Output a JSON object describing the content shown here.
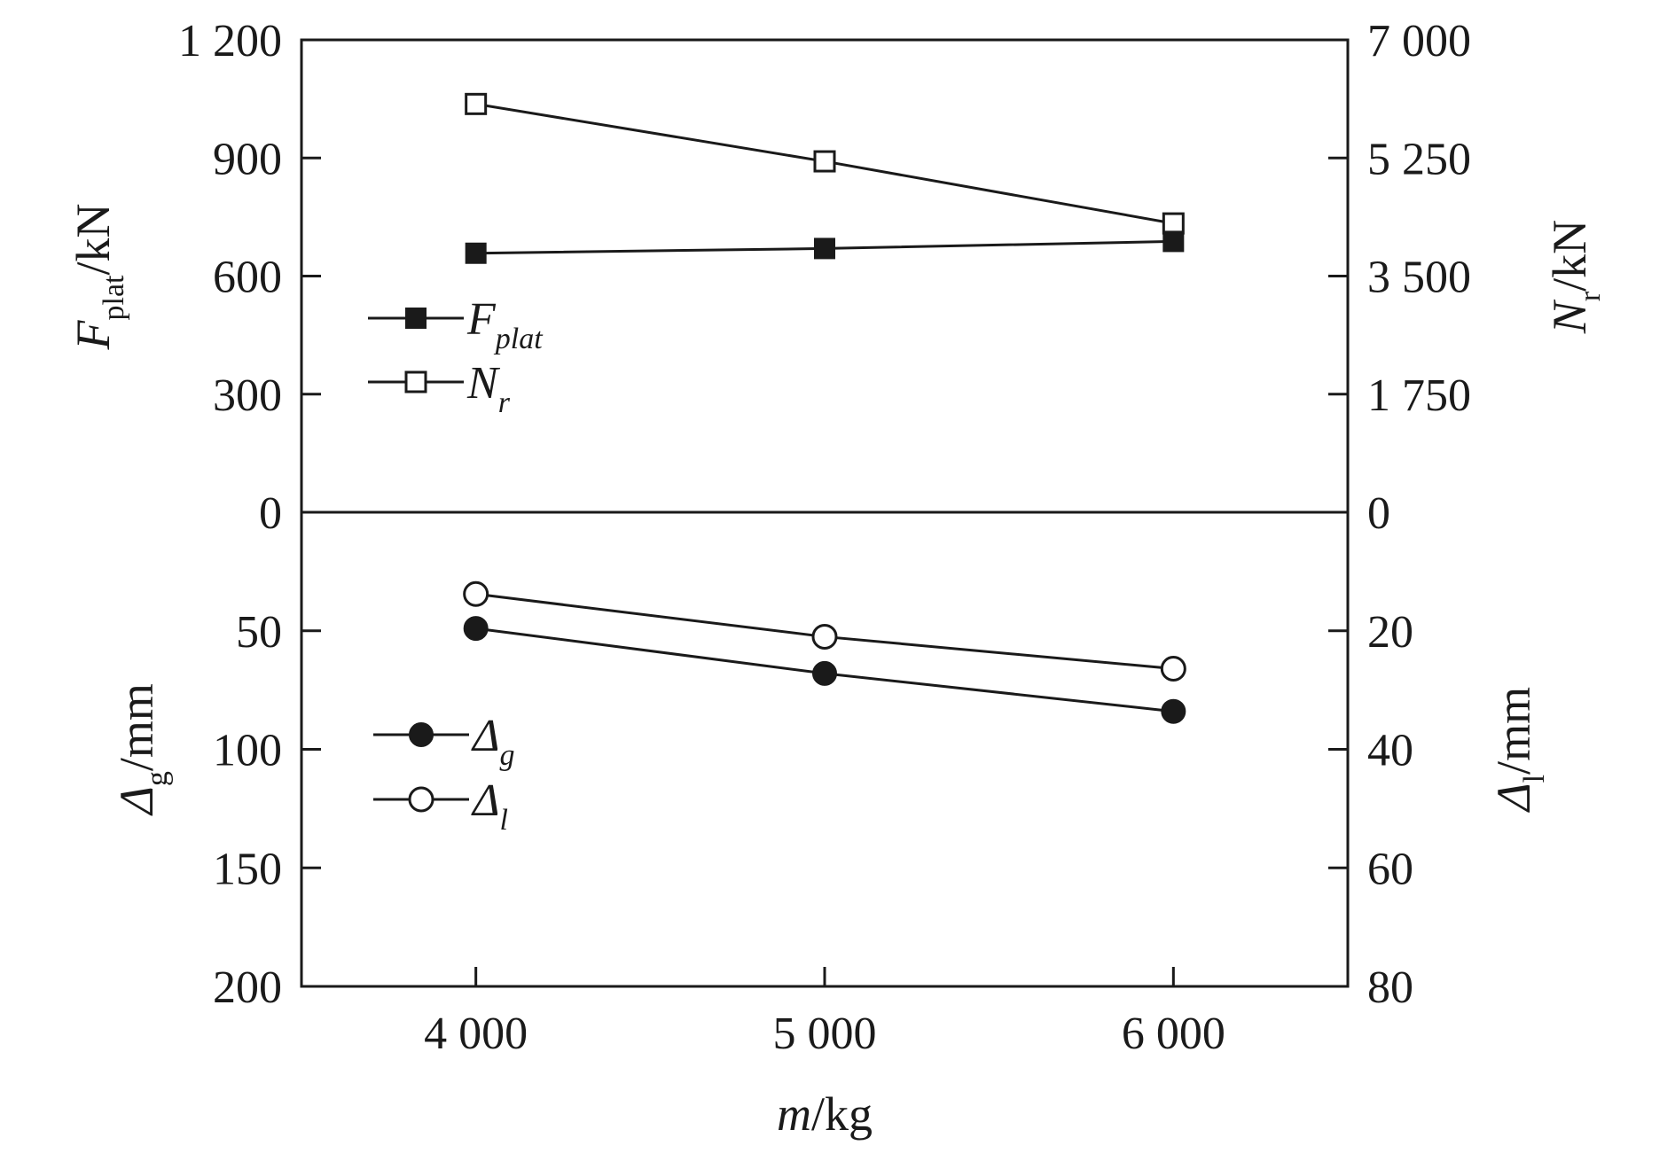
{
  "chart_data": [
    {
      "type": "line",
      "panel": "top",
      "x": [
        4000,
        5000,
        6000
      ],
      "xlim": [
        3500,
        6500
      ],
      "x_ticks": [
        "4 000",
        "5 000",
        "6 000"
      ],
      "left_axis": {
        "label_main": "F",
        "label_sub": "plat",
        "label_unit": "/kN",
        "ylim": [
          0,
          1200
        ],
        "ticks": [
          "0",
          "300",
          "600",
          "900",
          "1 200"
        ],
        "tick_values": [
          0,
          300,
          600,
          900,
          1200
        ]
      },
      "right_axis": {
        "label_main": "N",
        "label_sub": "r",
        "label_unit": "/kN",
        "ylim": [
          0,
          7000
        ],
        "ticks": [
          "0",
          "1 750",
          "3 500",
          "5 250",
          "7 000"
        ],
        "tick_values": [
          0,
          1750,
          3500,
          5250,
          7000
        ]
      },
      "series": [
        {
          "name": "F",
          "name_sub": "plat",
          "axis": "left",
          "marker": "filled-square",
          "values": [
            658,
            670,
            688
          ]
        },
        {
          "name": "N",
          "name_sub": "r",
          "axis": "right",
          "marker": "open-square",
          "values": [
            6050,
            5200,
            4280
          ]
        }
      ],
      "legend_position": "left"
    },
    {
      "type": "line",
      "panel": "bottom",
      "x": [
        4000,
        5000,
        6000
      ],
      "xlim": [
        3500,
        6500
      ],
      "x_ticks": [
        "4 000",
        "5 000",
        "6 000"
      ],
      "xlabel_main": "m",
      "xlabel_unit": "/kg",
      "left_axis": {
        "label_main": "Δ",
        "label_sub": "g",
        "label_unit": "/mm",
        "ylim": [
          0,
          200
        ],
        "inverted": true,
        "ticks": [
          "0",
          "50",
          "100",
          "150",
          "200"
        ],
        "tick_values": [
          0,
          50,
          100,
          150,
          200
        ]
      },
      "right_axis": {
        "label_main": "Δ",
        "label_sub": "l",
        "label_unit": "/mm",
        "ylim": [
          0,
          80
        ],
        "inverted": true,
        "ticks": [
          "20",
          "40",
          "60",
          "80"
        ],
        "tick_values": [
          20,
          40,
          60,
          80
        ]
      },
      "series": [
        {
          "name": "Δ",
          "name_sub": "g",
          "axis": "left",
          "marker": "filled-circle",
          "values": [
            49,
            68,
            84
          ]
        },
        {
          "name": "Δ",
          "name_sub": "l",
          "axis": "right",
          "marker": "open-circle",
          "values": [
            13.8,
            21,
            26.4
          ]
        }
      ],
      "legend_position": "left"
    }
  ]
}
